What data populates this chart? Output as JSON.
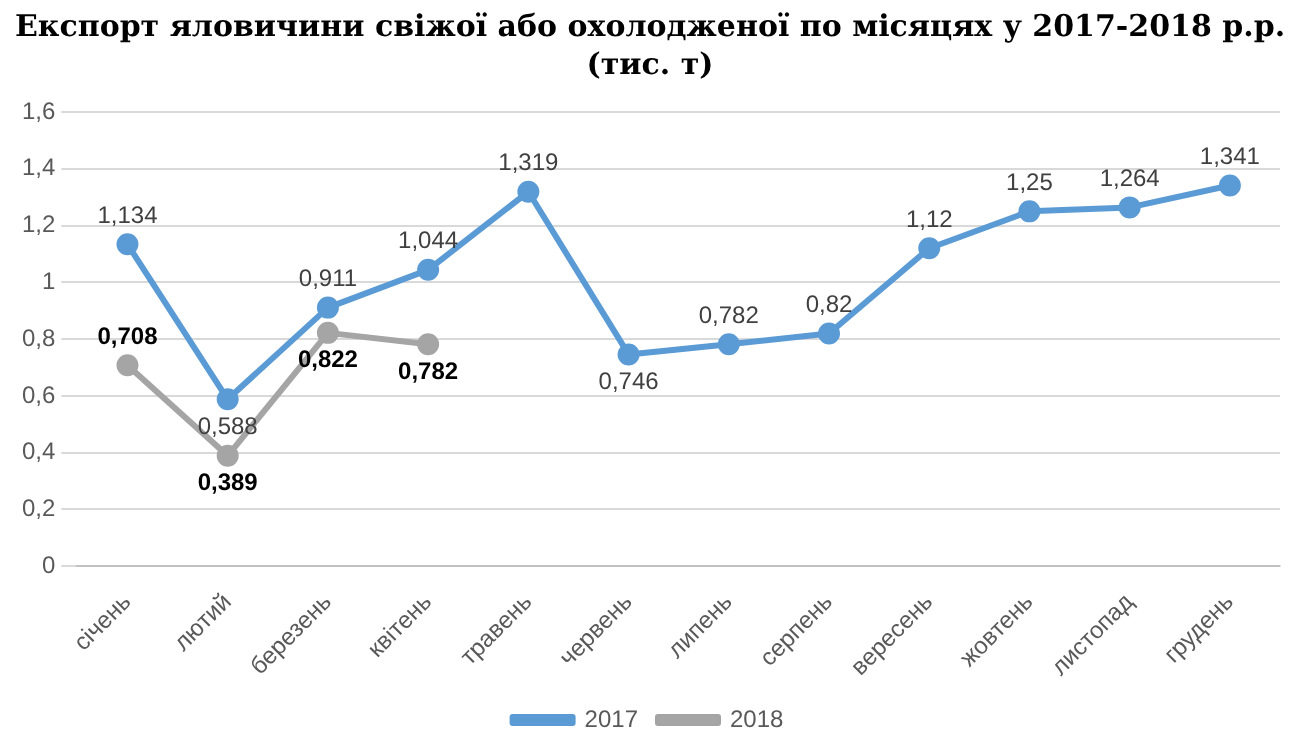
{
  "chart_data": {
    "type": "line",
    "title": "Експорт яловичини свіжої або охолодженої по місяцях у 2017-2018 р.р. (тис. т)",
    "categories": [
      "січень",
      "лютий",
      "березень",
      "квітень",
      "травень",
      "червень",
      "липень",
      "серпень",
      "вересень",
      "жовтень",
      "листопад",
      "грудень"
    ],
    "series": [
      {
        "name": "2017",
        "color": "#5b9bd5",
        "values": [
          1.134,
          0.588,
          0.911,
          1.044,
          1.319,
          0.746,
          0.782,
          0.82,
          1.12,
          1.25,
          1.264,
          1.341
        ],
        "value_labels": [
          "1,134",
          "0,588",
          "0,911",
          "1,044",
          "1,319",
          "0,746",
          "0,782",
          "0,82",
          "1,12",
          "1,25",
          "1,264",
          "1,341"
        ]
      },
      {
        "name": "2018",
        "color": "#a5a5a5",
        "values": [
          0.708,
          0.389,
          0.822,
          0.782,
          null,
          null,
          null,
          null,
          null,
          null,
          null,
          null
        ],
        "value_labels": [
          "0,708",
          "0,389",
          "0,822",
          "0,782",
          null,
          null,
          null,
          null,
          null,
          null,
          null,
          null
        ]
      }
    ],
    "ylim": [
      0,
      1.6
    ],
    "yticks": [
      {
        "value": 0,
        "label": "0"
      },
      {
        "value": 0.2,
        "label": "0,2"
      },
      {
        "value": 0.4,
        "label": "0,4"
      },
      {
        "value": 0.6,
        "label": "0,6"
      },
      {
        "value": 0.8,
        "label": "0,8"
      },
      {
        "value": 1,
        "label": "1"
      },
      {
        "value": 1.2,
        "label": "1,2"
      },
      {
        "value": 1.4,
        "label": "1,4"
      },
      {
        "value": 1.6,
        "label": "1,6"
      }
    ],
    "grid": "y",
    "legend": "bottom",
    "marker": "circle",
    "line_style": "solid"
  }
}
